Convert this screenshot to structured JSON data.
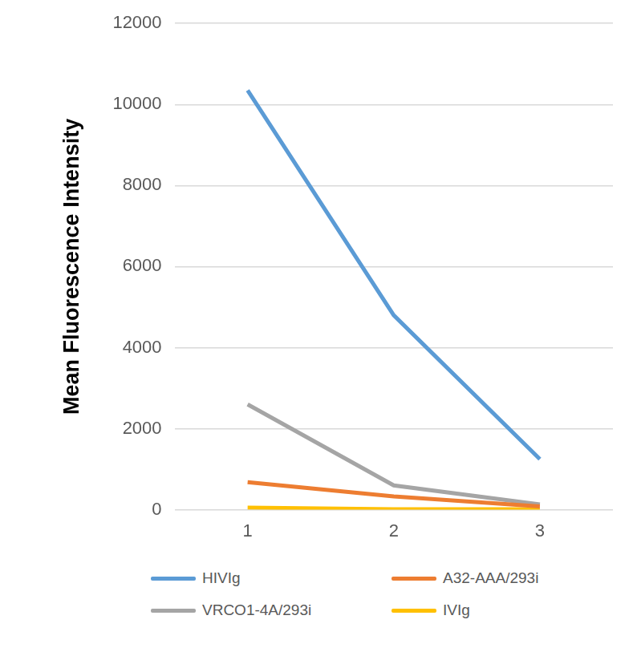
{
  "chart_data": {
    "type": "line",
    "y_label": "Mean Fluorescence Intensity",
    "categories": [
      "1",
      "2",
      "3"
    ],
    "series": [
      {
        "name": "HIVIg",
        "color": "#5b9bd5",
        "values": [
          10350,
          4800,
          1250
        ]
      },
      {
        "name": "A32-AAA/293i",
        "color": "#ed7d31",
        "values": [
          680,
          330,
          80
        ]
      },
      {
        "name": "VRCO1-4A/293i",
        "color": "#a5a5a5",
        "values": [
          2600,
          600,
          130
        ]
      },
      {
        "name": "IVIg",
        "color": "#ffc000",
        "values": [
          50,
          10,
          10
        ]
      }
    ],
    "ylim": [
      0,
      12000
    ],
    "yticks": [
      0,
      2000,
      4000,
      6000,
      8000,
      10000,
      12000
    ],
    "grid": true,
    "legend": "bottom"
  }
}
